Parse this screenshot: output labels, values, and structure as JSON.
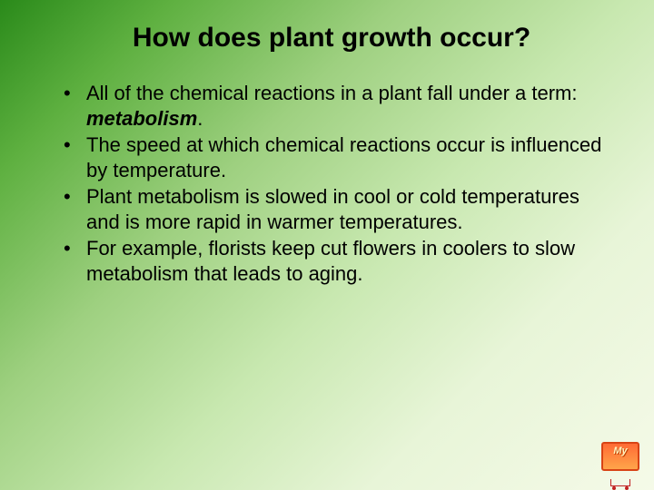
{
  "slide": {
    "title": "How does plant growth occur?",
    "bullets": [
      {
        "pre": "All of the chemical reactions in a plant fall under a term: ",
        "emph": "metabolism",
        "post": "."
      },
      {
        "pre": "The speed at which chemical reactions occur is influenced by temperature.",
        "emph": "",
        "post": ""
      },
      {
        "pre": "Plant metabolism is slowed in cool or cold temperatures and is more rapid in warmer temperatures.",
        "emph": "",
        "post": ""
      },
      {
        "pre": "For example, florists keep cut flowers in coolers to slow metabolism that leads to aging.",
        "emph": "",
        "post": ""
      }
    ]
  },
  "logo": {
    "text": "My"
  },
  "styling": {
    "background_gradient_start": "#2a8a1a",
    "background_gradient_end": "#f5fae8",
    "title_fontsize": 30,
    "body_fontsize": 22,
    "text_color": "#000000",
    "font_family": "Verdana"
  }
}
